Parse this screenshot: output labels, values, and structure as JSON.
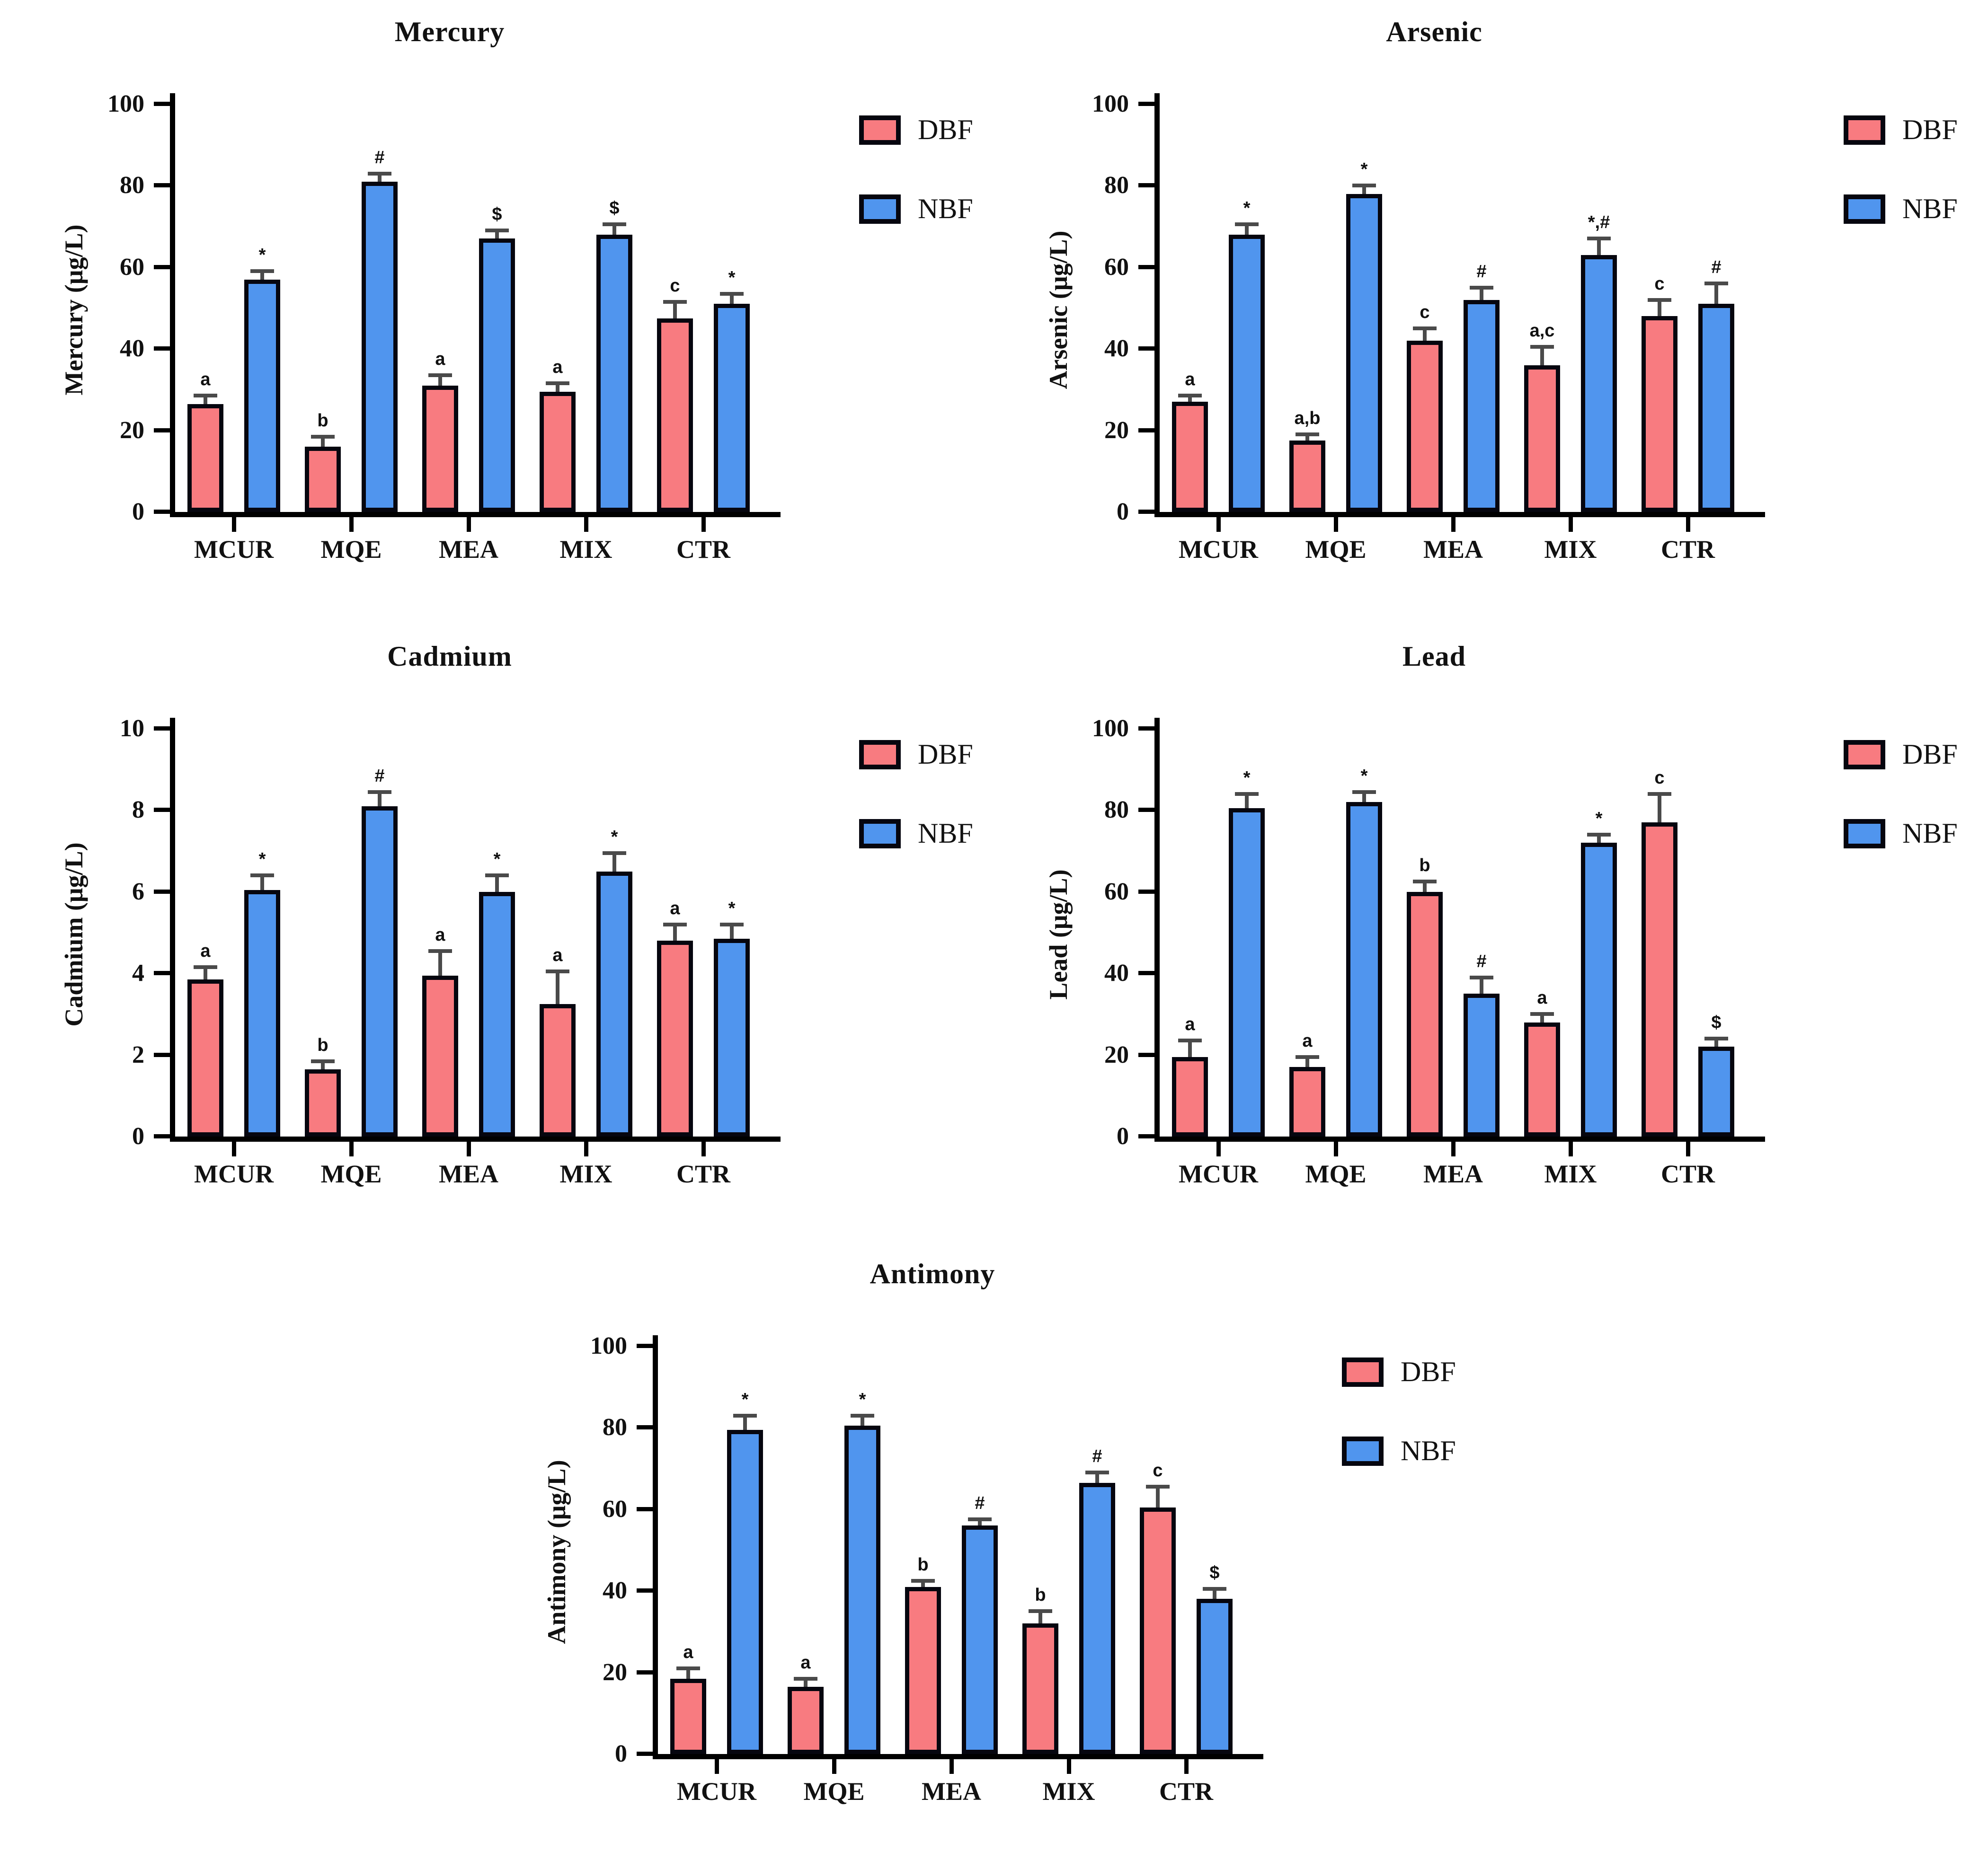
{
  "figure": {
    "legend": {
      "dbf": "DBF",
      "nbf": "NBF"
    },
    "colors": {
      "dbf_fill": "#F87B80",
      "nbf_fill": "#5095EE",
      "bar_outline": "#06060F",
      "axis": "#000000",
      "error_bar": "#4A4A4A"
    }
  },
  "chart_data": [
    {
      "type": "bar",
      "title": "Mercury",
      "ylabel": "Mercury (μg/L)",
      "xlabel": "",
      "ylim": [
        0,
        100
      ],
      "yticks": [
        0,
        20,
        40,
        60,
        80,
        100
      ],
      "grid": false,
      "legend_position": "right",
      "categories": [
        "MCUR",
        "MQE",
        "MEA",
        "MIX",
        "CTR"
      ],
      "series": [
        {
          "name": "DBF",
          "values": [
            26.5,
            16,
            31,
            29.5,
            47.5
          ],
          "errors": [
            2,
            2.5,
            2.5,
            2,
            4
          ],
          "annotations": [
            "a",
            "b",
            "a",
            "a",
            "c"
          ]
        },
        {
          "name": "NBF",
          "values": [
            57,
            81,
            67,
            68,
            51
          ],
          "errors": [
            2,
            2,
            2,
            2.5,
            2.5
          ],
          "annotations": [
            "*",
            "#",
            "$",
            "$",
            "*"
          ]
        }
      ]
    },
    {
      "type": "bar",
      "title": "Arsenic",
      "ylabel": "Arsenic (μg/L)",
      "xlabel": "",
      "ylim": [
        0,
        100
      ],
      "yticks": [
        0,
        20,
        40,
        60,
        80,
        100
      ],
      "grid": false,
      "legend_position": "right",
      "categories": [
        "MCUR",
        "MQE",
        "MEA",
        "MIX",
        "CTR"
      ],
      "series": [
        {
          "name": "DBF",
          "values": [
            27,
            17.5,
            42,
            36,
            48
          ],
          "errors": [
            1.5,
            1.5,
            3,
            4.5,
            4
          ],
          "annotations": [
            "a",
            "a,b",
            "c",
            "a,c",
            "c"
          ]
        },
        {
          "name": "NBF",
          "values": [
            68,
            78,
            52,
            63,
            51
          ],
          "errors": [
            2.5,
            2,
            3,
            4,
            5
          ],
          "annotations": [
            "*",
            "*",
            "#",
            "*,#",
            "#"
          ]
        }
      ]
    },
    {
      "type": "bar",
      "title": "Cadmium",
      "ylabel": "Cadmium (μg/L)",
      "xlabel": "",
      "ylim": [
        0,
        10
      ],
      "yticks": [
        0,
        2,
        4,
        6,
        8,
        10
      ],
      "grid": false,
      "legend_position": "right",
      "categories": [
        "MCUR",
        "MQE",
        "MEA",
        "MIX",
        "CTR"
      ],
      "series": [
        {
          "name": "DBF",
          "values": [
            3.85,
            1.65,
            3.95,
            3.25,
            4.8
          ],
          "errors": [
            0.3,
            0.2,
            0.6,
            0.8,
            0.4
          ],
          "annotations": [
            "a",
            "b",
            "a",
            "a",
            "a"
          ]
        },
        {
          "name": "NBF",
          "values": [
            6.05,
            8.1,
            6.0,
            6.5,
            4.85
          ],
          "errors": [
            0.35,
            0.35,
            0.4,
            0.45,
            0.35
          ],
          "annotations": [
            "*",
            "#",
            "*",
            "*",
            "*"
          ]
        }
      ]
    },
    {
      "type": "bar",
      "title": "Lead",
      "ylabel": "Lead (μg/L)",
      "xlabel": "",
      "ylim": [
        0,
        100
      ],
      "yticks": [
        0,
        20,
        40,
        60,
        80,
        100
      ],
      "grid": false,
      "legend_position": "right",
      "categories": [
        "MCUR",
        "MQE",
        "MEA",
        "MIX",
        "CTR"
      ],
      "series": [
        {
          "name": "DBF",
          "values": [
            19.5,
            17,
            60,
            28,
            77
          ],
          "errors": [
            4,
            2.5,
            2.5,
            2,
            7
          ],
          "annotations": [
            "a",
            "a",
            "b",
            "a",
            "c"
          ]
        },
        {
          "name": "NBF",
          "values": [
            80.5,
            82,
            35,
            72,
            22
          ],
          "errors": [
            3.5,
            2.5,
            4,
            2,
            2
          ],
          "annotations": [
            "*",
            "*",
            "#",
            "*",
            "$"
          ]
        }
      ]
    },
    {
      "type": "bar",
      "title": "Antimony",
      "ylabel": "Antimony (μg/L)",
      "xlabel": "",
      "ylim": [
        0,
        100
      ],
      "yticks": [
        0,
        20,
        40,
        60,
        80,
        100
      ],
      "grid": false,
      "legend_position": "right",
      "categories": [
        "MCUR",
        "MQE",
        "MEA",
        "MIX",
        "CTR"
      ],
      "series": [
        {
          "name": "DBF",
          "values": [
            18.5,
            16.5,
            41,
            32,
            60.5
          ],
          "errors": [
            2.5,
            2,
            1.5,
            3,
            5
          ],
          "annotations": [
            "a",
            "a",
            "b",
            "b",
            "c"
          ]
        },
        {
          "name": "NBF",
          "values": [
            79.5,
            80.5,
            56,
            66.5,
            38
          ],
          "errors": [
            3.5,
            2.5,
            1.5,
            2.5,
            2.5
          ],
          "annotations": [
            "*",
            "*",
            "#",
            "#",
            "$"
          ]
        }
      ]
    }
  ]
}
